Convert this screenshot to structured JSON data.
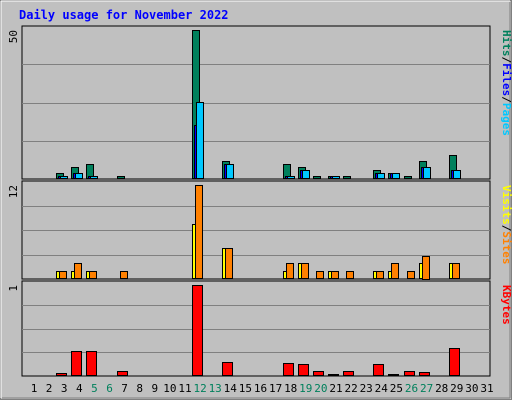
{
  "title": "Daily usage for November 2022",
  "colors": {
    "hits": "#00805c",
    "files": "#0000ff",
    "pages": "#00c8ff",
    "visits": "#ffff00",
    "sites": "#ff8000",
    "kbytes": "#ff0000",
    "title": "#0000ff",
    "weekend": "#00805c",
    "weekday": "#000000",
    "background": "#c0c0c0"
  },
  "legends": {
    "top": [
      {
        "text": "Pages",
        "color": "#00c8ff"
      },
      {
        "text": "/",
        "color": "#000000"
      },
      {
        "text": "Files",
        "color": "#0000ff"
      },
      {
        "text": "/",
        "color": "#000000"
      },
      {
        "text": "Hits",
        "color": "#00805c"
      }
    ],
    "middle": [
      {
        "text": "Sites",
        "color": "#ff8000"
      },
      {
        "text": "/",
        "color": "#000000"
      },
      {
        "text": "Visits",
        "color": "#ffff00"
      }
    ],
    "bottom": [
      {
        "text": "KBytes",
        "color": "#ff0000"
      }
    ]
  },
  "chart_data": [
    {
      "type": "bar",
      "panel": "top",
      "ymax_label": "50",
      "ylim": [
        0,
        50
      ],
      "categories": [
        "1",
        "2",
        "3",
        "4",
        "5",
        "6",
        "7",
        "8",
        "9",
        "10",
        "11",
        "12",
        "13",
        "14",
        "15",
        "16",
        "17",
        "18",
        "19",
        "20",
        "21",
        "22",
        "23",
        "24",
        "25",
        "26",
        "27",
        "28",
        "29",
        "30",
        "31"
      ],
      "series": [
        {
          "name": "Hits",
          "values": [
            0,
            0,
            2,
            4,
            5,
            0,
            1,
            0,
            0,
            0,
            0,
            50,
            0,
            6,
            0,
            0,
            0,
            5,
            4,
            1,
            1,
            1,
            0,
            3,
            2,
            1,
            6,
            0,
            8,
            0,
            0
          ]
        },
        {
          "name": "Files",
          "values": [
            0,
            0,
            1,
            2,
            1,
            0,
            0,
            0,
            0,
            0,
            0,
            18,
            0,
            5,
            0,
            0,
            0,
            1,
            3,
            0,
            1,
            0,
            0,
            2,
            2,
            0,
            4,
            0,
            3,
            0,
            0
          ]
        },
        {
          "name": "Pages",
          "values": [
            0,
            0,
            1,
            2,
            1,
            0,
            0,
            0,
            0,
            0,
            0,
            26,
            0,
            5,
            0,
            0,
            0,
            1,
            3,
            0,
            1,
            0,
            0,
            2,
            2,
            0,
            4,
            0,
            3,
            0,
            0
          ]
        }
      ]
    },
    {
      "type": "bar",
      "panel": "middle",
      "ymax_label": "12",
      "ylim": [
        0,
        12
      ],
      "categories": [
        "1",
        "2",
        "3",
        "4",
        "5",
        "6",
        "7",
        "8",
        "9",
        "10",
        "11",
        "12",
        "13",
        "14",
        "15",
        "16",
        "17",
        "18",
        "19",
        "20",
        "21",
        "22",
        "23",
        "24",
        "25",
        "26",
        "27",
        "28",
        "29",
        "30",
        "31"
      ],
      "series": [
        {
          "name": "Visits",
          "values": [
            0,
            0,
            1,
            1,
            1,
            0,
            0,
            0,
            0,
            0,
            0,
            7,
            0,
            4,
            0,
            0,
            0,
            1,
            2,
            0,
            1,
            0,
            0,
            1,
            1,
            0,
            2,
            0,
            2,
            0,
            0
          ]
        },
        {
          "name": "Sites",
          "values": [
            0,
            0,
            1,
            2,
            1,
            0,
            1,
            0,
            0,
            0,
            0,
            12,
            0,
            4,
            0,
            0,
            0,
            2,
            2,
            1,
            1,
            1,
            0,
            1,
            2,
            1,
            3,
            0,
            2,
            0,
            0
          ]
        }
      ]
    },
    {
      "type": "bar",
      "panel": "bottom",
      "ymax_label": "1",
      "ylim": [
        0,
        1
      ],
      "categories": [
        "1",
        "2",
        "3",
        "4",
        "5",
        "6",
        "7",
        "8",
        "9",
        "10",
        "11",
        "12",
        "13",
        "14",
        "15",
        "16",
        "17",
        "18",
        "19",
        "20",
        "21",
        "22",
        "23",
        "24",
        "25",
        "26",
        "27",
        "28",
        "29",
        "30",
        "31"
      ],
      "series": [
        {
          "name": "KBytes",
          "values": [
            0,
            0,
            0.03,
            0.27,
            0.28,
            0,
            0.06,
            0,
            0,
            0,
            0,
            1.0,
            0,
            0.15,
            0,
            0,
            0,
            0.14,
            0.13,
            0.06,
            0.02,
            0.06,
            0,
            0.13,
            0.02,
            0.06,
            0.04,
            0,
            0.31,
            0,
            0
          ]
        }
      ]
    }
  ]
}
